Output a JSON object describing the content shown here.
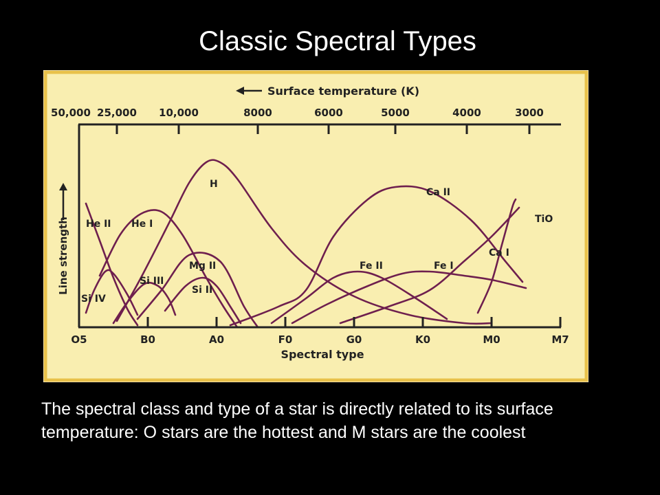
{
  "slide": {
    "title": "Classic Spectral Types",
    "caption": "The spectral class and type of a star is directly related to its surface temperature: O stars are the hottest and M stars are the coolest"
  },
  "colors": {
    "background": "#000000",
    "panel": "#f9eeb0",
    "panel_border": "#e8c14a",
    "curve": "#6e1f4e",
    "axis": "#222222"
  },
  "chart_data": {
    "type": "line",
    "xlabel": "Spectral type",
    "ylabel": "Line strength",
    "top_axis_label": "Surface temperature (K)",
    "categories": [
      "O5",
      "B0",
      "A0",
      "F0",
      "G0",
      "K0",
      "M0",
      "M7"
    ],
    "x_range": [
      0,
      7
    ],
    "y_range": [
      0,
      1
    ],
    "temperature_ticks": [
      {
        "label": "50,000",
        "x": -0.12
      },
      {
        "label": "25,000",
        "x": 0.55
      },
      {
        "label": "10,000",
        "x": 1.45
      },
      {
        "label": "8000",
        "x": 2.6
      },
      {
        "label": "6000",
        "x": 3.63
      },
      {
        "label": "5000",
        "x": 4.6
      },
      {
        "label": "4000",
        "x": 5.64
      },
      {
        "label": "3000",
        "x": 6.55
      }
    ],
    "series": [
      {
        "name": "He II",
        "points": [
          [
            0.1,
            0.6
          ],
          [
            0.3,
            0.42
          ],
          [
            0.5,
            0.24
          ],
          [
            0.7,
            0.09
          ],
          [
            0.85,
            0.01
          ]
        ]
      },
      {
        "name": "He I",
        "points": [
          [
            0.3,
            0.25
          ],
          [
            0.6,
            0.45
          ],
          [
            0.9,
            0.55
          ],
          [
            1.2,
            0.56
          ],
          [
            1.5,
            0.45
          ],
          [
            1.85,
            0.24
          ],
          [
            2.1,
            0.1
          ],
          [
            2.3,
            0.0
          ]
        ]
      },
      {
        "name": "H",
        "points": [
          [
            0.55,
            0.03
          ],
          [
            0.9,
            0.24
          ],
          [
            1.3,
            0.5
          ],
          [
            1.6,
            0.7
          ],
          [
            1.85,
            0.8
          ],
          [
            2.05,
            0.8
          ],
          [
            2.3,
            0.72
          ],
          [
            2.8,
            0.48
          ],
          [
            3.3,
            0.3
          ],
          [
            4.0,
            0.15
          ],
          [
            4.8,
            0.06
          ],
          [
            5.6,
            0.02
          ],
          [
            6.0,
            0.02
          ]
        ]
      },
      {
        "name": "Si IV",
        "points": [
          [
            0.1,
            0.07
          ],
          [
            0.22,
            0.18
          ],
          [
            0.38,
            0.27
          ],
          [
            0.5,
            0.26
          ],
          [
            0.7,
            0.16
          ],
          [
            0.85,
            0.06
          ]
        ]
      },
      {
        "name": "Si III",
        "points": [
          [
            0.5,
            0.02
          ],
          [
            0.7,
            0.12
          ],
          [
            0.95,
            0.21
          ],
          [
            1.15,
            0.2
          ],
          [
            1.3,
            0.14
          ],
          [
            1.4,
            0.06
          ]
        ]
      },
      {
        "name": "Mg II",
        "points": [
          [
            0.85,
            0.04
          ],
          [
            1.2,
            0.18
          ],
          [
            1.6,
            0.35
          ],
          [
            2.05,
            0.32
          ],
          [
            2.4,
            0.1
          ],
          [
            2.6,
            0.0
          ]
        ]
      },
      {
        "name": "Si II",
        "points": [
          [
            1.25,
            0.08
          ],
          [
            1.55,
            0.2
          ],
          [
            1.8,
            0.24
          ],
          [
            2.0,
            0.2
          ],
          [
            2.2,
            0.1
          ],
          [
            2.35,
            0.02
          ]
        ]
      },
      {
        "name": "Ca II",
        "points": [
          [
            2.2,
            0.01
          ],
          [
            2.9,
            0.1
          ],
          [
            3.3,
            0.18
          ],
          [
            3.7,
            0.44
          ],
          [
            4.2,
            0.62
          ],
          [
            4.6,
            0.68
          ],
          [
            5.1,
            0.66
          ],
          [
            5.7,
            0.52
          ],
          [
            6.2,
            0.32
          ],
          [
            6.45,
            0.22
          ]
        ]
      },
      {
        "name": "Fe II",
        "points": [
          [
            2.8,
            0.02
          ],
          [
            3.3,
            0.14
          ],
          [
            3.7,
            0.24
          ],
          [
            4.05,
            0.27
          ],
          [
            4.4,
            0.24
          ],
          [
            4.9,
            0.14
          ],
          [
            5.35,
            0.04
          ]
        ]
      },
      {
        "name": "Fe I",
        "points": [
          [
            3.1,
            0.02
          ],
          [
            3.6,
            0.11
          ],
          [
            4.2,
            0.2
          ],
          [
            4.7,
            0.26
          ],
          [
            5.1,
            0.27
          ],
          [
            5.6,
            0.25
          ],
          [
            6.0,
            0.23
          ],
          [
            6.5,
            0.19
          ]
        ]
      },
      {
        "name": "Ca I",
        "points": [
          [
            3.8,
            0.02
          ],
          [
            4.5,
            0.1
          ],
          [
            5.1,
            0.18
          ],
          [
            5.6,
            0.32
          ],
          [
            6.0,
            0.44
          ],
          [
            6.4,
            0.58
          ]
        ]
      },
      {
        "name": "TiO",
        "points": [
          [
            5.8,
            0.07
          ],
          [
            6.0,
            0.22
          ],
          [
            6.15,
            0.4
          ],
          [
            6.3,
            0.58
          ],
          [
            6.35,
            0.62
          ]
        ]
      }
    ],
    "grid": false,
    "legend": "none"
  }
}
